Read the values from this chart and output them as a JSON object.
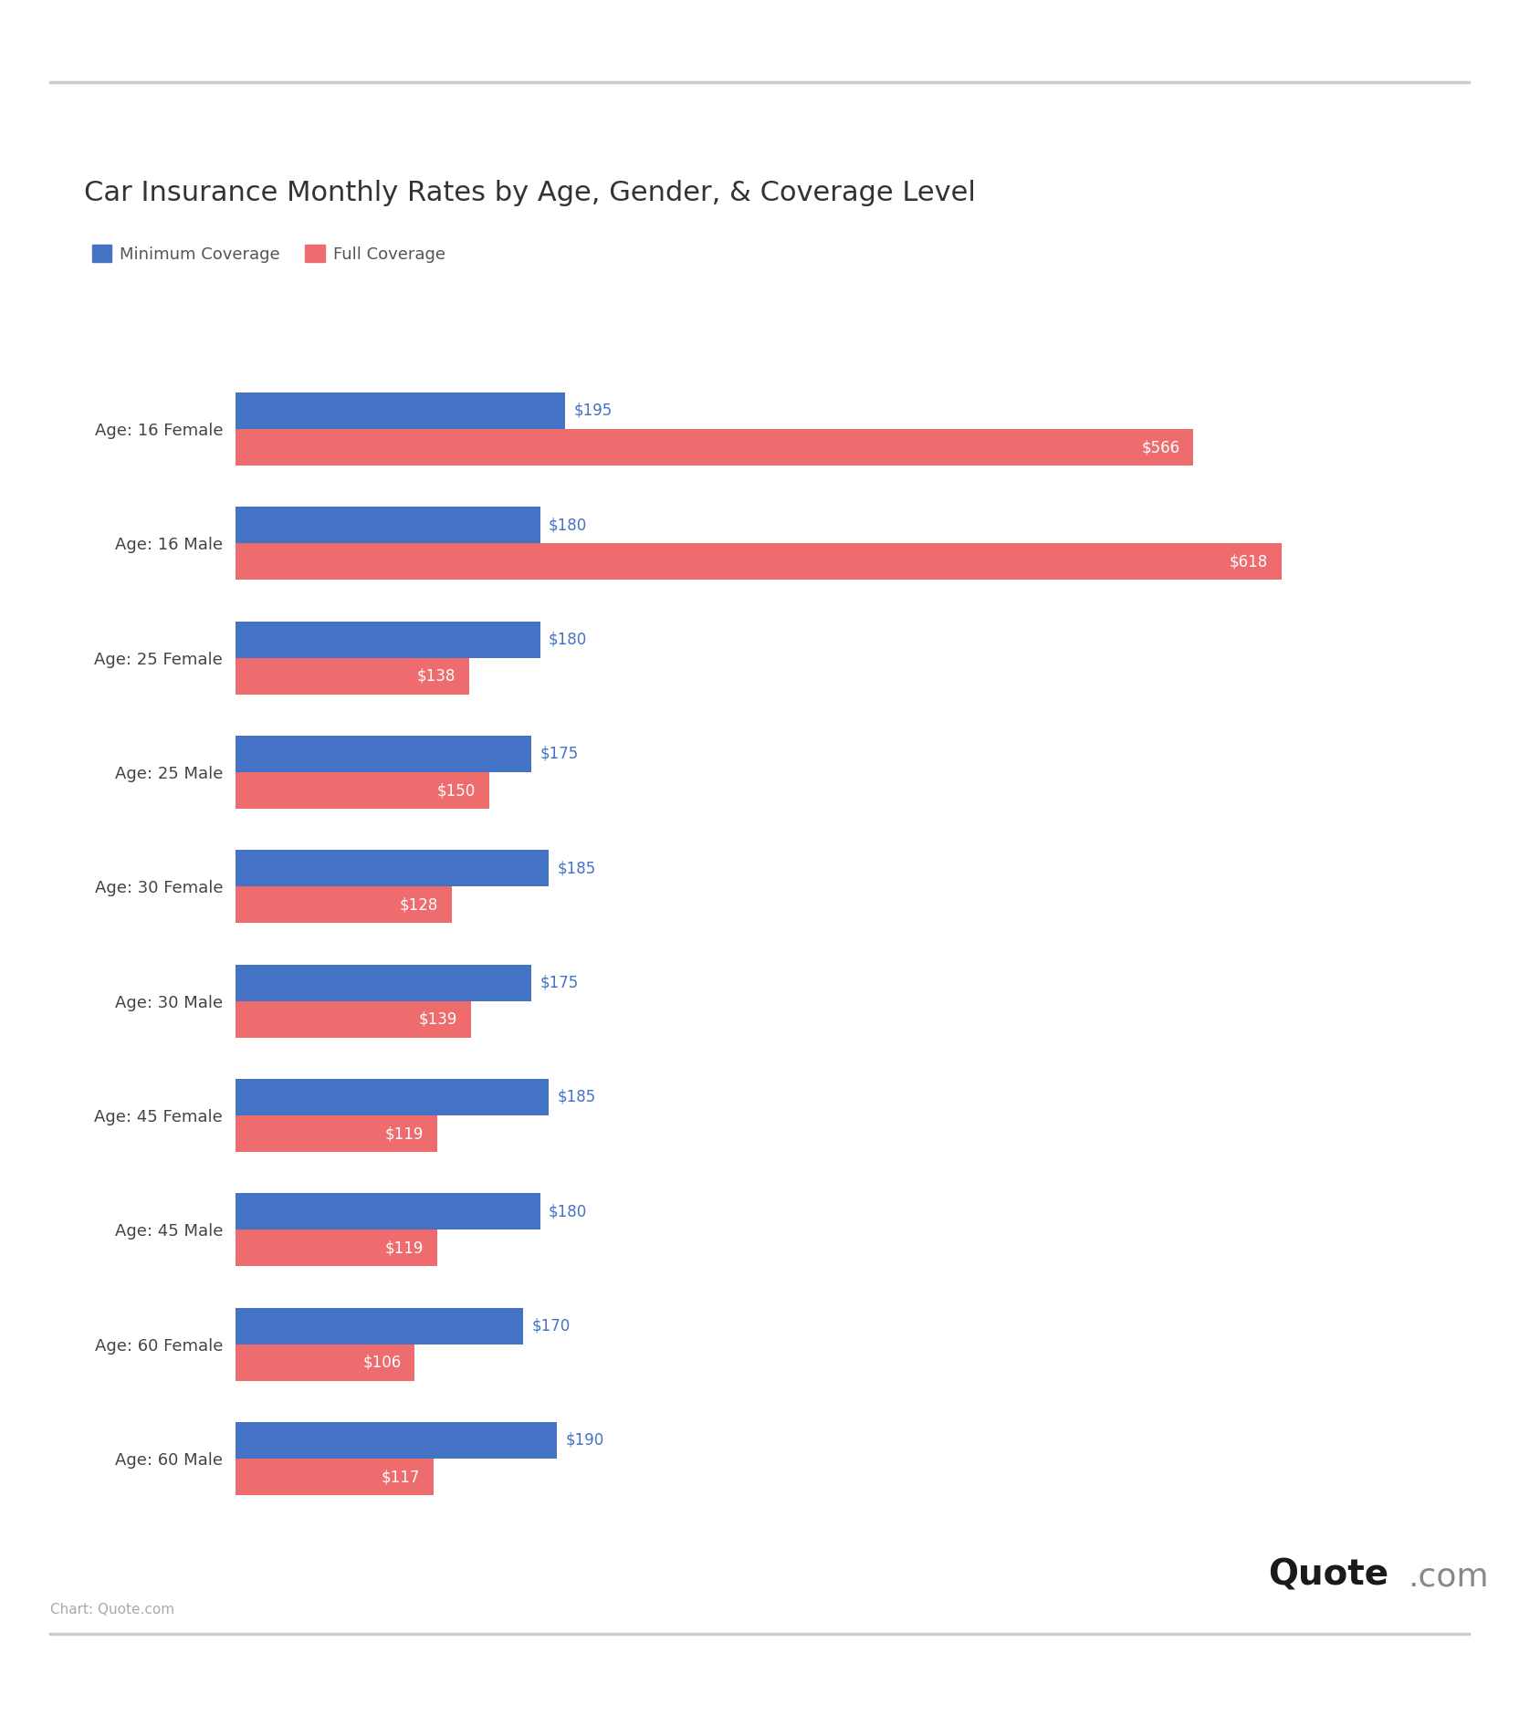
{
  "title": "Car Insurance Monthly Rates by Age, Gender, & Coverage Level",
  "categories": [
    "Age: 16 Female",
    "Age: 16 Male",
    "Age: 25 Female",
    "Age: 25 Male",
    "Age: 30 Female",
    "Age: 30 Male",
    "Age: 45 Female",
    "Age: 45 Male",
    "Age: 60 Female",
    "Age: 60 Male"
  ],
  "minimum_coverage": [
    195,
    180,
    180,
    175,
    185,
    175,
    185,
    180,
    170,
    190
  ],
  "full_coverage": [
    566,
    618,
    138,
    150,
    128,
    139,
    119,
    119,
    106,
    117
  ],
  "min_color": "#4472C4",
  "full_color": "#EE6B6E",
  "legend_min": "Minimum Coverage",
  "legend_full": "Full Coverage",
  "background_color": "#FFFFFF",
  "bar_height": 0.32,
  "xlim": [
    0,
    700
  ],
  "watermark_bold": "Quote",
  "watermark_reg": ".com",
  "chart_source": "Chart: Quote.com",
  "title_fontsize": 22,
  "tick_fontsize": 13,
  "legend_fontsize": 13,
  "value_fontsize": 12
}
